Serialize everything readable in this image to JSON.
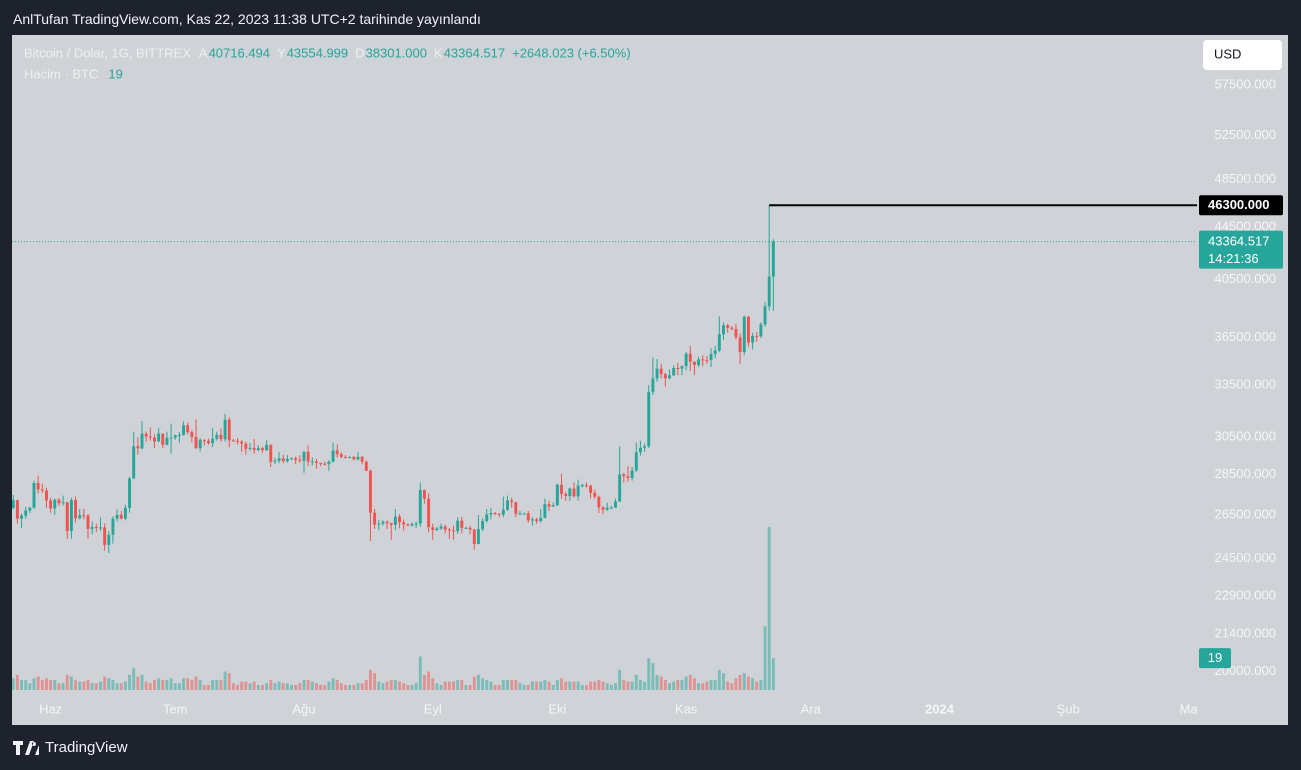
{
  "header": {
    "published": "AnlTufan TradingView.com, Kas 22, 2023 11:38 UTC+2 tarihinde yayınlandı"
  },
  "footer": {
    "brand": "TradingView"
  },
  "chart_data": {
    "type": "candlestick",
    "symbol": "Bitcoin / Dolar, 1G, BITTREX",
    "ohlc_legend": [
      {
        "key": "A",
        "value": "40716.494"
      },
      {
        "key": "Y",
        "value": "43554.999"
      },
      {
        "key": "D",
        "value": "38301.000"
      },
      {
        "key": "K",
        "value": "43364.517"
      }
    ],
    "change": "+2648.023 (+6.50%)",
    "volume_title": "Hacim · BTC",
    "currency": "USD",
    "log_scale": true,
    "up_color": "#26a69a",
    "down_color": "#ef5350",
    "ylim": [
      19100,
      62800
    ],
    "yticks": [
      {
        "value": 57500,
        "label": "57500.000"
      },
      {
        "value": 52500,
        "label": "52500.000"
      },
      {
        "value": 48500,
        "label": "48500.000"
      },
      {
        "value": 44500,
        "label": "44500.000"
      },
      {
        "value": 40500,
        "label": "40500.000"
      },
      {
        "value": 36500,
        "label": "36500.000"
      },
      {
        "value": 33500,
        "label": "33500.000"
      },
      {
        "value": 30500,
        "label": "30500.000"
      },
      {
        "value": 28500,
        "label": "28500.000"
      },
      {
        "value": 26500,
        "label": "26500.000"
      },
      {
        "value": 24500,
        "label": "24500.000"
      },
      {
        "value": 22900,
        "label": "22900.000"
      },
      {
        "value": 21400,
        "label": "21400.000"
      },
      {
        "value": 20000,
        "label": "20000.000"
      }
    ],
    "xlim": [
      -0.3,
      285
    ],
    "xticks": [
      {
        "value": 9,
        "label": "Haz"
      },
      {
        "value": 39,
        "label": "Tem"
      },
      {
        "value": 70,
        "label": "Ağu"
      },
      {
        "value": 101,
        "label": "Eyl"
      },
      {
        "value": 131,
        "label": "Eki"
      },
      {
        "value": 162,
        "label": "Kas"
      },
      {
        "value": 192,
        "label": "Ara"
      },
      {
        "value": 223,
        "label": "2024"
      },
      {
        "value": 254,
        "label": "Şub"
      },
      {
        "value": 283,
        "label": "Ma"
      }
    ],
    "high_line": {
      "value": 46300,
      "label": "46300.000"
    },
    "last_price": {
      "value": 43364.517,
      "countdown": "14:21:36"
    },
    "candles": [
      [
        26850,
        27480,
        26780,
        27220
      ],
      [
        27220,
        27240,
        26100,
        26330
      ],
      [
        26330,
        26580,
        25880,
        26480
      ],
      [
        26480,
        26900,
        26330,
        26720
      ],
      [
        26720,
        26900,
        26600,
        26860
      ],
      [
        26860,
        28200,
        26800,
        28080
      ],
      [
        28080,
        28450,
        27550,
        27750
      ],
      [
        27750,
        28050,
        27580,
        27700
      ],
      [
        27700,
        27840,
        26850,
        27210
      ],
      [
        27210,
        27350,
        26620,
        26820
      ],
      [
        26820,
        27300,
        26520,
        27250
      ],
      [
        27250,
        27330,
        26940,
        27070
      ],
      [
        27070,
        27450,
        26970,
        27120
      ],
      [
        27120,
        27130,
        25400,
        25750
      ],
      [
        25750,
        27350,
        25400,
        27230
      ],
      [
        27230,
        27400,
        26150,
        26350
      ],
      [
        26350,
        26800,
        26300,
        26500
      ],
      [
        26500,
        26800,
        26300,
        26480
      ],
      [
        26480,
        26550,
        25400,
        25850
      ],
      [
        25850,
        26200,
        25600,
        25940
      ],
      [
        25940,
        26100,
        25700,
        25900
      ],
      [
        25900,
        26400,
        25750,
        25920
      ],
      [
        25920,
        26100,
        24850,
        25120
      ],
      [
        25120,
        25750,
        24750,
        25580
      ],
      [
        25580,
        26450,
        25180,
        26330
      ],
      [
        26330,
        26780,
        26200,
        26510
      ],
      [
        26510,
        26700,
        26300,
        26340
      ],
      [
        26340,
        27000,
        26250,
        26850
      ],
      [
        26850,
        28400,
        26620,
        28310
      ],
      [
        28310,
        30800,
        28300,
        30000
      ],
      [
        30000,
        30500,
        29550,
        29890
      ],
      [
        29890,
        31400,
        29820,
        30690
      ],
      [
        30690,
        30800,
        30250,
        30530
      ],
      [
        30530,
        31050,
        30300,
        30470
      ],
      [
        30470,
        30650,
        29900,
        30270
      ],
      [
        30270,
        31000,
        30220,
        30690
      ],
      [
        30690,
        30700,
        29900,
        30080
      ],
      [
        30080,
        30800,
        30050,
        30450
      ],
      [
        30450,
        31250,
        29600,
        30470
      ],
      [
        30470,
        30650,
        30350,
        30590
      ],
      [
        30590,
        30780,
        30200,
        30620
      ],
      [
        30620,
        31380,
        30580,
        31160
      ],
      [
        31160,
        31300,
        30650,
        30770
      ],
      [
        30770,
        30880,
        30200,
        30510
      ],
      [
        30510,
        31480,
        29850,
        29900
      ],
      [
        29900,
        30450,
        29720,
        30350
      ],
      [
        30350,
        30380,
        30050,
        30290
      ],
      [
        30290,
        30420,
        30080,
        30170
      ],
      [
        30170,
        31000,
        29950,
        30410
      ],
      [
        30410,
        30800,
        30300,
        30620
      ],
      [
        30620,
        30980,
        30250,
        30380
      ],
      [
        30380,
        31800,
        30250,
        31470
      ],
      [
        31470,
        31620,
        29950,
        30320
      ],
      [
        30320,
        30400,
        30250,
        30300
      ],
      [
        30300,
        30450,
        30100,
        30250
      ],
      [
        30250,
        30330,
        29700,
        30140
      ],
      [
        30140,
        30250,
        29550,
        29860
      ],
      [
        29860,
        30180,
        29750,
        29910
      ],
      [
        29910,
        30400,
        29600,
        29800
      ],
      [
        29800,
        30050,
        29750,
        29900
      ],
      [
        29900,
        29980,
        29650,
        29790
      ],
      [
        29790,
        30330,
        29750,
        30080
      ],
      [
        30080,
        30100,
        28900,
        29180
      ],
      [
        29180,
        29380,
        29050,
        29230
      ],
      [
        29230,
        29680,
        29100,
        29350
      ],
      [
        29350,
        29550,
        29100,
        29210
      ],
      [
        29210,
        29520,
        29130,
        29320
      ],
      [
        29320,
        29400,
        29260,
        29360
      ],
      [
        29360,
        29450,
        29050,
        29280
      ],
      [
        29280,
        29520,
        29120,
        29230
      ],
      [
        29230,
        29730,
        28600,
        29700
      ],
      [
        29700,
        30050,
        28950,
        29180
      ],
      [
        29180,
        29400,
        28980,
        29190
      ],
      [
        29190,
        29320,
        28800,
        29110
      ],
      [
        29110,
        29120,
        28950,
        29070
      ],
      [
        29070,
        29180,
        28980,
        29050
      ],
      [
        29050,
        29250,
        28700,
        29180
      ],
      [
        29180,
        30200,
        29130,
        29770
      ],
      [
        29770,
        30100,
        29380,
        29570
      ],
      [
        29570,
        29680,
        29350,
        29430
      ],
      [
        29430,
        29530,
        29350,
        29400
      ],
      [
        29400,
        29470,
        29360,
        29420
      ],
      [
        29420,
        29480,
        29250,
        29300
      ],
      [
        29300,
        29680,
        29250,
        29430
      ],
      [
        29430,
        29480,
        29050,
        29170
      ],
      [
        29170,
        29250,
        28700,
        28700
      ],
      [
        28700,
        28780,
        25300,
        26620
      ],
      [
        26620,
        26800,
        25850,
        26050
      ],
      [
        26050,
        26280,
        25800,
        26100
      ],
      [
        26100,
        26250,
        26000,
        26190
      ],
      [
        26190,
        26250,
        25850,
        26120
      ],
      [
        26120,
        26150,
        25350,
        26040
      ],
      [
        26040,
        26800,
        25800,
        26430
      ],
      [
        26430,
        26550,
        25880,
        26160
      ],
      [
        26160,
        26300,
        25780,
        26060
      ],
      [
        26060,
        26100,
        25980,
        26010
      ],
      [
        26010,
        26150,
        25970,
        26090
      ],
      [
        26090,
        26200,
        25880,
        26100
      ],
      [
        26100,
        28100,
        25950,
        27720
      ],
      [
        27720,
        27750,
        27050,
        27300
      ],
      [
        27300,
        27550,
        25700,
        25930
      ],
      [
        25930,
        26100,
        25350,
        25800
      ],
      [
        25800,
        25950,
        25750,
        25870
      ],
      [
        25870,
        26100,
        25800,
        25970
      ],
      [
        25970,
        26050,
        25650,
        25820
      ],
      [
        25820,
        25900,
        25400,
        25780
      ],
      [
        25780,
        26000,
        25350,
        25750
      ],
      [
        25750,
        26400,
        25620,
        26240
      ],
      [
        26240,
        26420,
        25650,
        25900
      ],
      [
        25900,
        25950,
        25850,
        25900
      ],
      [
        25900,
        26000,
        25600,
        25830
      ],
      [
        25830,
        25850,
        24900,
        25160
      ],
      [
        25160,
        26500,
        25150,
        25840
      ],
      [
        25840,
        26350,
        25750,
        26220
      ],
      [
        26220,
        26800,
        26150,
        26530
      ],
      [
        26530,
        26850,
        26300,
        26600
      ],
      [
        26600,
        26650,
        26500,
        26570
      ],
      [
        26570,
        26600,
        26400,
        26530
      ],
      [
        26530,
        27400,
        26400,
        26760
      ],
      [
        26760,
        27450,
        26700,
        27210
      ],
      [
        27210,
        27350,
        26850,
        27130
      ],
      [
        27130,
        27150,
        26400,
        26570
      ],
      [
        26570,
        26700,
        26500,
        26580
      ],
      [
        26580,
        26620,
        26520,
        26580
      ],
      [
        26580,
        26700,
        26150,
        26250
      ],
      [
        26250,
        26400,
        26000,
        26300
      ],
      [
        26300,
        26380,
        26100,
        26220
      ],
      [
        26220,
        26800,
        26150,
        26370
      ],
      [
        26370,
        27300,
        26350,
        27030
      ],
      [
        27030,
        27200,
        26700,
        26910
      ],
      [
        26910,
        27100,
        26900,
        26970
      ],
      [
        26970,
        28050,
        26950,
        27990
      ],
      [
        27990,
        28550,
        27300,
        27530
      ],
      [
        27530,
        27650,
        27200,
        27430
      ],
      [
        27430,
        27850,
        27200,
        27800
      ],
      [
        27800,
        28100,
        27350,
        27420
      ],
      [
        27420,
        28250,
        27200,
        27950
      ],
      [
        27950,
        28050,
        27850,
        27970
      ],
      [
        27970,
        28100,
        27850,
        27940
      ],
      [
        27940,
        28000,
        27300,
        27590
      ],
      [
        27590,
        27750,
        27300,
        27390
      ],
      [
        27390,
        27450,
        26600,
        26870
      ],
      [
        26870,
        26950,
        26550,
        26760
      ],
      [
        26760,
        27100,
        26700,
        26860
      ],
      [
        26860,
        26950,
        26820,
        26860
      ],
      [
        26860,
        27300,
        26850,
        27160
      ],
      [
        27160,
        30000,
        27150,
        28520
      ],
      [
        28520,
        28600,
        28100,
        28420
      ],
      [
        28420,
        28950,
        28150,
        28330
      ],
      [
        28330,
        28900,
        28200,
        28720
      ],
      [
        28720,
        30200,
        28650,
        29680
      ],
      [
        29680,
        30300,
        29500,
        29920
      ],
      [
        29920,
        30150,
        29700,
        30000
      ],
      [
        30000,
        33500,
        29900,
        33090
      ],
      [
        33090,
        35200,
        32900,
        33900
      ],
      [
        33900,
        35100,
        33700,
        34500
      ],
      [
        34500,
        34800,
        33900,
        34160
      ],
      [
        34160,
        34250,
        33400,
        33910
      ],
      [
        33910,
        34450,
        33850,
        34090
      ],
      [
        34090,
        34700,
        34050,
        34540
      ],
      [
        34540,
        34850,
        34100,
        34500
      ],
      [
        34500,
        34700,
        34100,
        34660
      ],
      [
        34660,
        35550,
        34400,
        35440
      ],
      [
        35440,
        35950,
        34350,
        34940
      ],
      [
        34940,
        34950,
        34100,
        34730
      ],
      [
        34730,
        35250,
        34600,
        35080
      ],
      [
        35080,
        35350,
        34650,
        35050
      ],
      [
        35050,
        35300,
        34800,
        35040
      ],
      [
        35040,
        35800,
        34600,
        35420
      ],
      [
        35420,
        35950,
        35150,
        35640
      ],
      [
        35640,
        37900,
        35550,
        36700
      ],
      [
        36700,
        37500,
        36350,
        37310
      ],
      [
        37310,
        37400,
        36800,
        37130
      ],
      [
        37130,
        37250,
        36950,
        37060
      ],
      [
        37060,
        37400,
        36350,
        36500
      ],
      [
        36500,
        36750,
        34800,
        35550
      ],
      [
        35550,
        37950,
        35350,
        37880
      ],
      [
        37880,
        37950,
        35900,
        36160
      ],
      [
        36160,
        36800,
        35700,
        36600
      ],
      [
        36600,
        36850,
        36200,
        36570
      ],
      [
        36570,
        37500,
        36450,
        37360
      ],
      [
        37360,
        38900,
        37200,
        38600
      ],
      [
        38600,
        46300,
        38300,
        40716
      ],
      [
        40716,
        43554.999,
        38301,
        43364.517
      ]
    ],
    "volumes": [
      7,
      9,
      6,
      6,
      4,
      7,
      8,
      6,
      7,
      6,
      6,
      4,
      4,
      9,
      8,
      6,
      5,
      5,
      6,
      4,
      4,
      5,
      8,
      7,
      6,
      4,
      4,
      5,
      9,
      13,
      8,
      9,
      5,
      4,
      6,
      7,
      6,
      6,
      7,
      4,
      4,
      7,
      7,
      6,
      8,
      6,
      3,
      3,
      6,
      6,
      6,
      11,
      10,
      4,
      3,
      5,
      5,
      4,
      5,
      3,
      3,
      4,
      6,
      4,
      5,
      4,
      4,
      3,
      3,
      4,
      6,
      6,
      5,
      4,
      3,
      3,
      5,
      7,
      6,
      4,
      3,
      3,
      3,
      4,
      4,
      6,
      12,
      10,
      5,
      4,
      5,
      6,
      6,
      5,
      4,
      3,
      3,
      4,
      20,
      9,
      11,
      7,
      4,
      3,
      5,
      5,
      5,
      6,
      6,
      3,
      3,
      8,
      9,
      7,
      6,
      5,
      3,
      3,
      6,
      6,
      6,
      6,
      4,
      3,
      3,
      5,
      5,
      5,
      6,
      5,
      3,
      6,
      7,
      5,
      5,
      5,
      5,
      3,
      3,
      5,
      5,
      6,
      5,
      4,
      3,
      4,
      12,
      6,
      5,
      5,
      9,
      6,
      5,
      19,
      16,
      9,
      8,
      6,
      4,
      5,
      6,
      6,
      8,
      9,
      7,
      4,
      4,
      5,
      6,
      6,
      12,
      10,
      5,
      4,
      7,
      9,
      10,
      8,
      7,
      5,
      6,
      38,
      97,
      19
    ]
  }
}
